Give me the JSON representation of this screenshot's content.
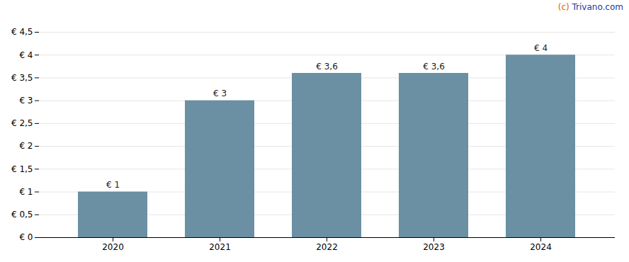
{
  "chart_data": {
    "type": "bar",
    "categories": [
      "2020",
      "2021",
      "2022",
      "2023",
      "2024"
    ],
    "values": [
      1.0,
      3.0,
      3.6,
      3.6,
      4.0
    ],
    "value_labels": [
      "€ 1",
      "€ 3",
      "€ 3,6",
      "€ 3,6",
      "€ 4"
    ],
    "data_labels": true,
    "color": "#6b8fa3",
    "ylim": [
      0,
      4.5
    ],
    "yticks": [
      {
        "value": 0,
        "label": "€ 0"
      },
      {
        "value": 0.5,
        "label": "€ 0,5"
      },
      {
        "value": 1.0,
        "label": "€ 1"
      },
      {
        "value": 1.5,
        "label": "€ 1,5"
      },
      {
        "value": 2.0,
        "label": "€ 2"
      },
      {
        "value": 2.5,
        "label": "€ 2,5"
      },
      {
        "value": 3.0,
        "label": "€ 3"
      },
      {
        "value": 3.5,
        "label": "€ 3,5"
      },
      {
        "value": 4.0,
        "label": "€ 4"
      },
      {
        "value": 4.5,
        "label": "€ 4,5"
      }
    ],
    "grid": true,
    "annotations": [
      {
        "text": "(c)",
        "color": "#e06000"
      },
      {
        "text": " Trivano.com",
        "color": "#1a3a9e"
      }
    ]
  }
}
